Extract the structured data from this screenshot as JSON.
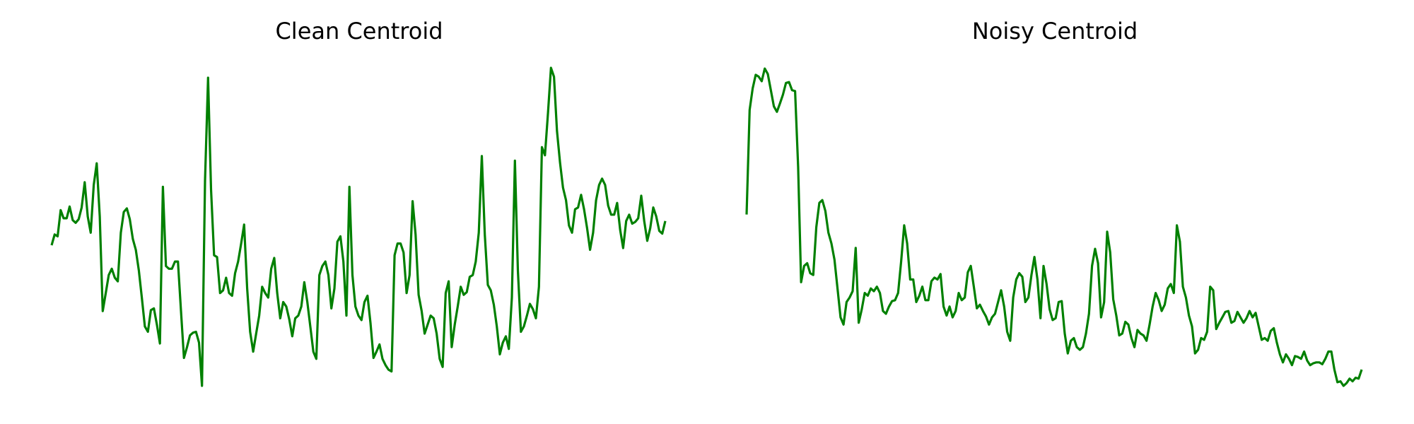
{
  "chart_data": [
    {
      "type": "line",
      "title": "Clean Centroid",
      "color": "#008000",
      "values": [
        168,
        180,
        178,
        207,
        198,
        198,
        211,
        196,
        193,
        197,
        210,
        238,
        200,
        182,
        235,
        259,
        200,
        95,
        115,
        135,
        142,
        132,
        128,
        182,
        205,
        209,
        197,
        175,
        163,
        140,
        110,
        78,
        72,
        96,
        98,
        80,
        59,
        233,
        145,
        142,
        142,
        150,
        150,
        95,
        43,
        55,
        68,
        71,
        72,
        60,
        12,
        240,
        354,
        230,
        157,
        155,
        115,
        118,
        132,
        115,
        112,
        137,
        150,
        170,
        191,
        120,
        72,
        50,
        70,
        90,
        122,
        115,
        110,
        142,
        154,
        115,
        87,
        105,
        100,
        86,
        67,
        87,
        90,
        100,
        127,
        105,
        78,
        50,
        42,
        135,
        145,
        150,
        135,
        98,
        120,
        172,
        178,
        150,
        90,
        233,
        135,
        100,
        90,
        85,
        105,
        112,
        82,
        43,
        50,
        58,
        42,
        35,
        30,
        28,
        157,
        170,
        170,
        160,
        115,
        135,
        217,
        180,
        113,
        95,
        70,
        80,
        90,
        87,
        70,
        42,
        33,
        115,
        128,
        55,
        80,
        100,
        122,
        113,
        116,
        133,
        135,
        150,
        182,
        267,
        180,
        124,
        118,
        102,
        78,
        47,
        60,
        67,
        53,
        110,
        262,
        140,
        72,
        78,
        90,
        103,
        97,
        87,
        122,
        277,
        268,
        315,
        365,
        355,
        295,
        260,
        232,
        218,
        190,
        182,
        208,
        210,
        224,
        208,
        187,
        163,
        182,
        218,
        235,
        242,
        235,
        212,
        202,
        202,
        215,
        185,
        165,
        195,
        202,
        192,
        194,
        198,
        223,
        195,
        173,
        187,
        210,
        200,
        184,
        181,
        195
      ]
    },
    {
      "type": "line",
      "title": "Noisy Centroid",
      "color": "#008000",
      "values": [
        202,
        318,
        342,
        357,
        355,
        350,
        364,
        358,
        340,
        322,
        316,
        325,
        335,
        348,
        349,
        340,
        339,
        255,
        127,
        145,
        148,
        137,
        135,
        188,
        215,
        218,
        206,
        182,
        170,
        152,
        120,
        88,
        80,
        105,
        110,
        117,
        165,
        82,
        97,
        115,
        112,
        120,
        117,
        122,
        115,
        95,
        92,
        100,
        106,
        107,
        115,
        150,
        190,
        170,
        130,
        130,
        105,
        112,
        122,
        107,
        107,
        128,
        132,
        130,
        136,
        100,
        90,
        100,
        88,
        95,
        115,
        107,
        110,
        138,
        145,
        122,
        98,
        102,
        95,
        89,
        80,
        88,
        92,
        105,
        118,
        100,
        72,
        62,
        110,
        130,
        137,
        133,
        105,
        110,
        135,
        155,
        130,
        87,
        145,
        125,
        97,
        85,
        87,
        105,
        106,
        70,
        48,
        62,
        65,
        55,
        52,
        55,
        70,
        92,
        145,
        164,
        148,
        88,
        105,
        183,
        160,
        108,
        90,
        68,
        70,
        83,
        80,
        65,
        55,
        74,
        70,
        68,
        62,
        80,
        100,
        115,
        107,
        95,
        102,
        120,
        125,
        115,
        190,
        172,
        122,
        110,
        90,
        78,
        48,
        52,
        65,
        63,
        72,
        122,
        118,
        75,
        82,
        88,
        94,
        95,
        82,
        84,
        94,
        88,
        82,
        87,
        95,
        88,
        93,
        78,
        63,
        65,
        62,
        73,
        76,
        60,
        47,
        38,
        47,
        42,
        35,
        45,
        44,
        42,
        50,
        40,
        35,
        37,
        38,
        38,
        36,
        42,
        50,
        50,
        30,
        16,
        17,
        12,
        15,
        20,
        17,
        21,
        20,
        30
      ]
    }
  ]
}
